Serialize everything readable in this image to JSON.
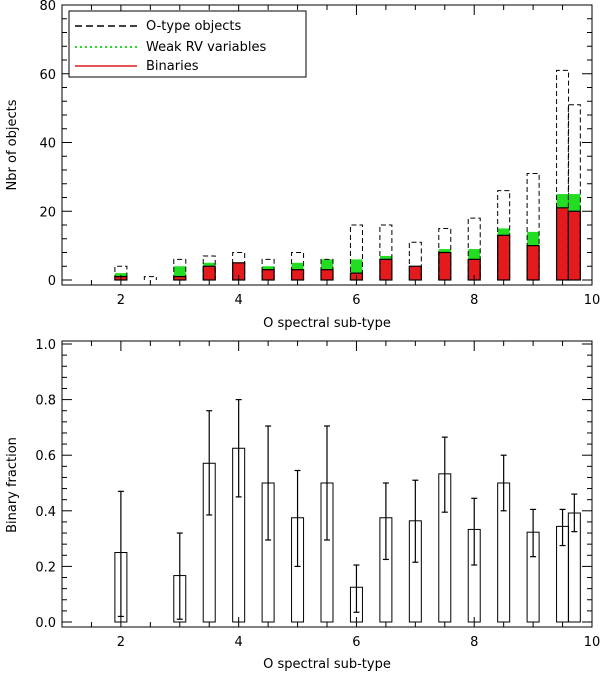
{
  "colors": {
    "binaries": "#e41a1c",
    "weak_rv": "#22dd22",
    "o_type": "#000000",
    "axis": "#000000"
  },
  "chart_data": [
    {
      "type": "bar",
      "title": "",
      "xlabel": "O spectral sub-type",
      "ylabel": "Nbr of objects",
      "xlim": [
        1,
        10
      ],
      "ylim": [
        0,
        80
      ],
      "xticks": [
        "2",
        "4",
        "6",
        "8",
        "10"
      ],
      "yticks": [
        "0",
        "20",
        "40",
        "60",
        "80"
      ],
      "legend_position": "top-left",
      "legend": [
        "O-type objects",
        "Weak RV variables",
        "Binaries"
      ],
      "x": [
        2,
        2.5,
        3,
        3.5,
        4,
        4.5,
        5,
        5.5,
        6,
        6.5,
        7,
        7.5,
        8,
        8.5,
        9,
        9.5,
        9.7
      ],
      "series": [
        {
          "name": "O-type objects",
          "values": [
            4,
            1,
            6,
            7,
            8,
            6,
            8,
            6,
            16,
            16,
            11,
            15,
            18,
            26,
            31,
            61,
            51
          ]
        },
        {
          "name": "Weak RV variables",
          "values": [
            1,
            0,
            3,
            1,
            0,
            1,
            2,
            3,
            4,
            1,
            0,
            1,
            3,
            2,
            4,
            4,
            5
          ]
        },
        {
          "name": "Binaries",
          "values": [
            1,
            0,
            1,
            4,
            5,
            3,
            3,
            3,
            2,
            6,
            4,
            8,
            6,
            13,
            10,
            21,
            20
          ]
        }
      ]
    },
    {
      "type": "bar",
      "title": "",
      "xlabel": "O spectral sub-type",
      "ylabel": "Binary fraction",
      "xlim": [
        1,
        10
      ],
      "ylim": [
        0,
        1
      ],
      "xticks": [
        "2",
        "4",
        "6",
        "8",
        "10"
      ],
      "yticks": [
        "0.0",
        "0.2",
        "0.4",
        "0.6",
        "0.8",
        "1.0"
      ],
      "x": [
        2,
        3,
        3.5,
        4,
        4.5,
        5,
        5.5,
        6,
        6.5,
        7,
        7.5,
        8,
        8.5,
        9,
        9.5,
        9.7
      ],
      "values": [
        0.25,
        0.167,
        0.571,
        0.625,
        0.5,
        0.375,
        0.5,
        0.125,
        0.375,
        0.364,
        0.533,
        0.333,
        0.5,
        0.323,
        0.344,
        0.392
      ],
      "error_low": [
        0.02,
        0.01,
        0.385,
        0.45,
        0.295,
        0.2,
        0.295,
        0.035,
        0.225,
        0.215,
        0.395,
        0.205,
        0.4,
        0.235,
        0.275,
        0.325
      ],
      "error_high": [
        0.47,
        0.32,
        0.76,
        0.8,
        0.705,
        0.545,
        0.705,
        0.205,
        0.5,
        0.51,
        0.665,
        0.445,
        0.6,
        0.405,
        0.405,
        0.46
      ]
    }
  ]
}
